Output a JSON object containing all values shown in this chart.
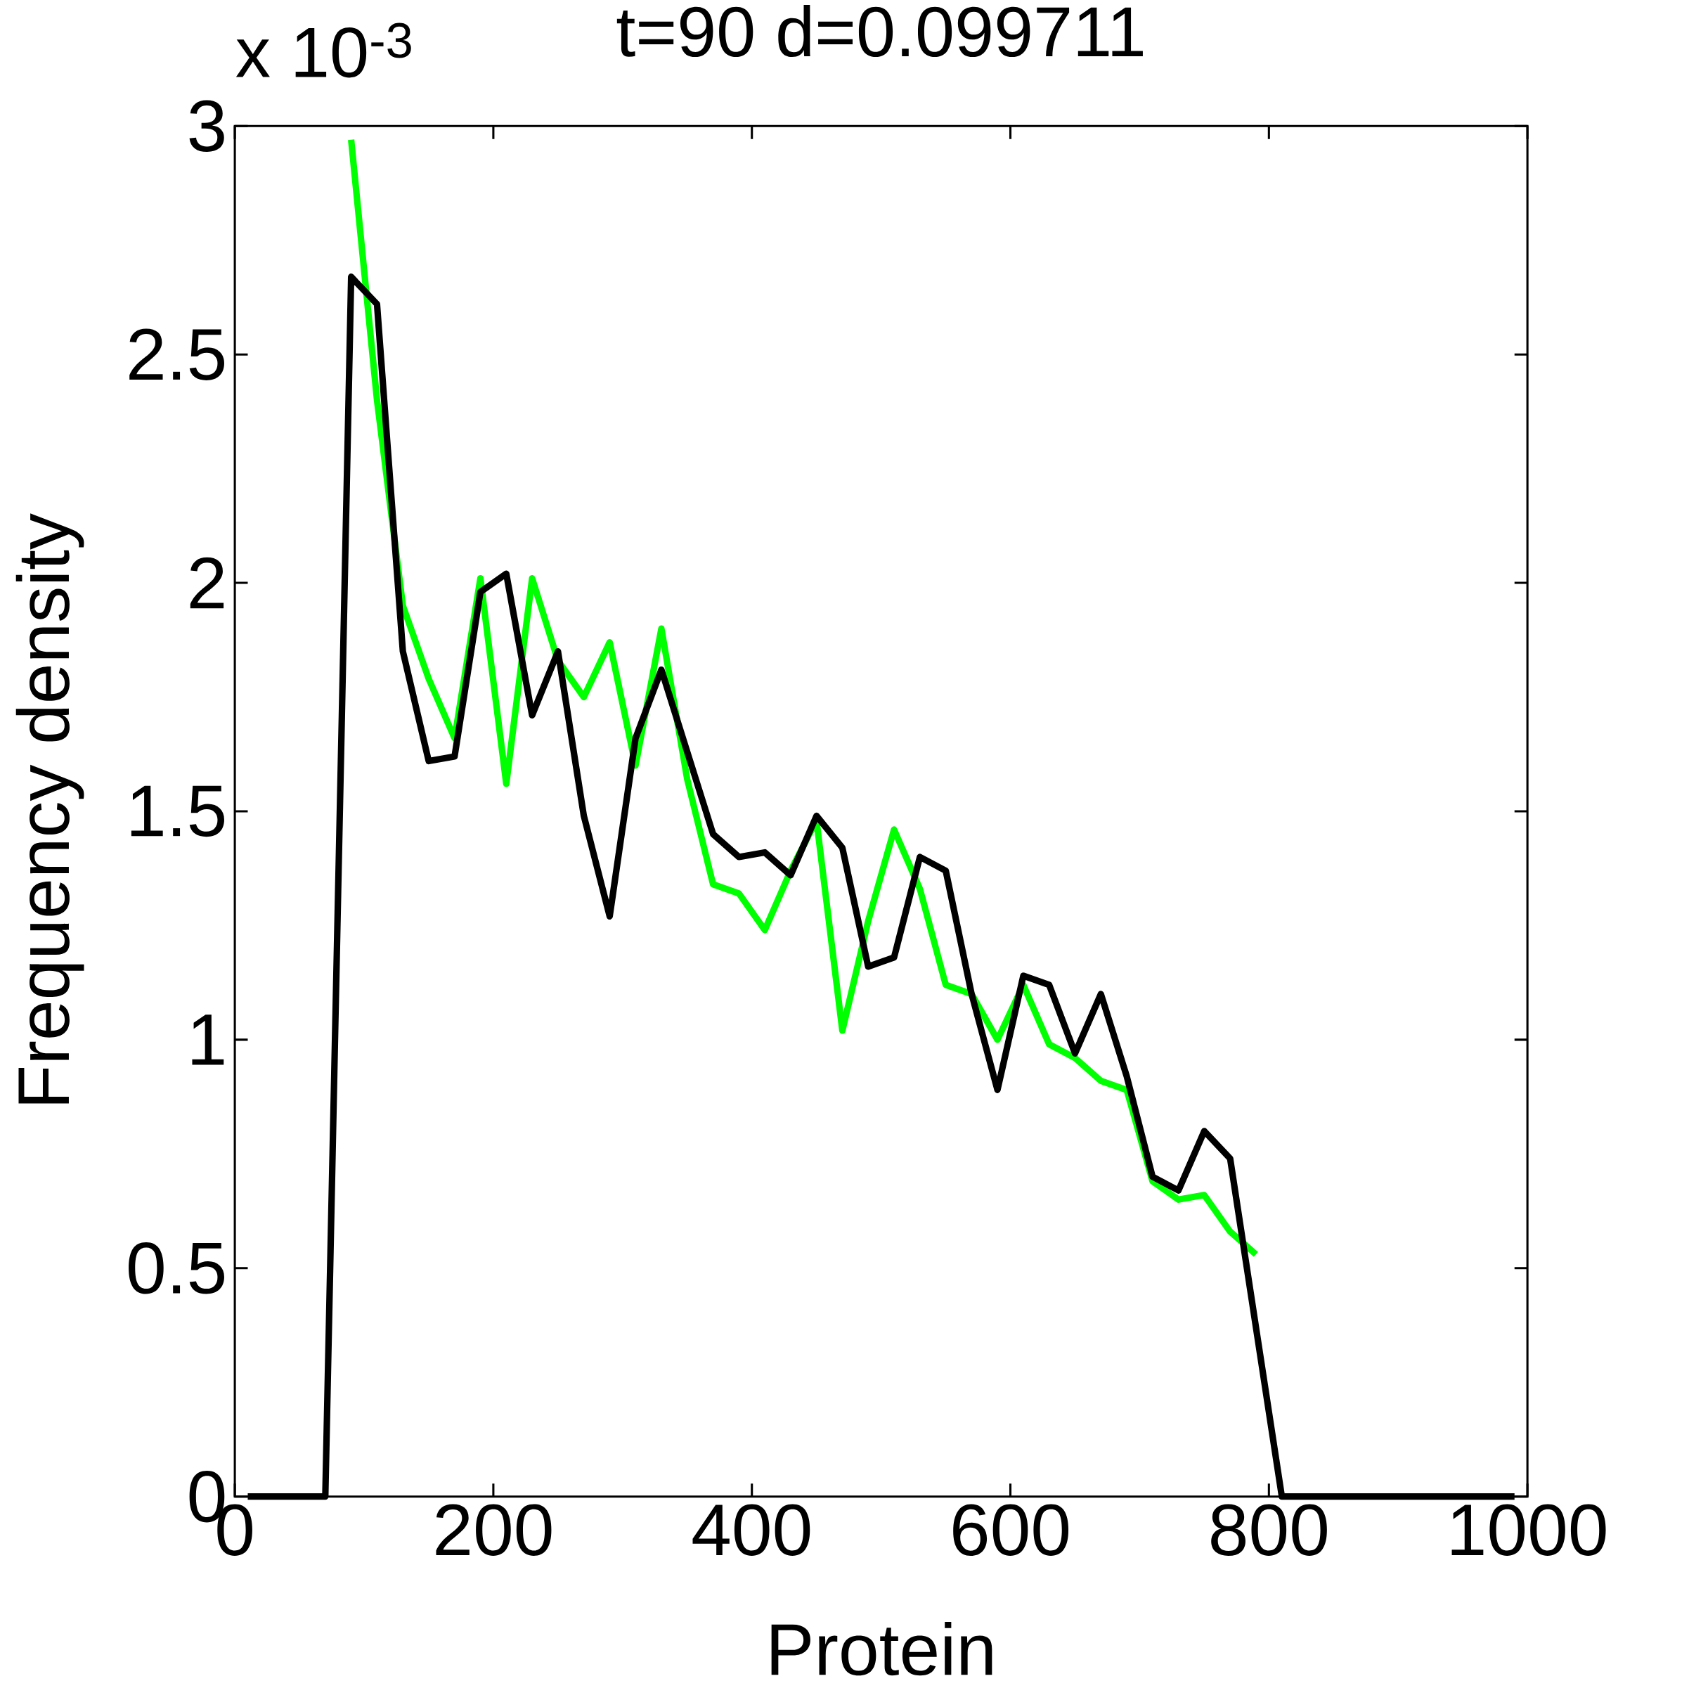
{
  "chart_data": {
    "type": "line",
    "title": "t=90 d=0.099711",
    "xlabel": "Protein",
    "ylabel": "Frequency density",
    "annotations": [
      "x 10$^{-3}$"
    ],
    "xlim": [
      0,
      1000
    ],
    "ylim": [
      0,
      3
    ],
    "xticks": [
      0,
      200,
      400,
      600,
      800,
      1000
    ],
    "yticks": [
      0,
      0.5,
      1,
      1.5,
      2,
      2.5,
      3
    ],
    "series": [
      {
        "color": "#00ff00",
        "x": [
          90,
          110,
          130,
          150,
          170,
          190,
          210,
          230,
          250,
          270,
          290,
          310,
          330,
          350,
          370,
          390,
          410,
          430,
          450,
          470,
          490,
          510,
          530,
          550,
          570,
          590,
          610,
          630,
          650,
          670,
          690,
          710,
          730,
          750,
          770,
          790
        ],
        "values": [
          2.97,
          2.4,
          1.95,
          1.79,
          1.66,
          2.01,
          1.56,
          2.01,
          1.83,
          1.75,
          1.87,
          1.6,
          1.9,
          1.57,
          1.34,
          1.32,
          1.24,
          1.37,
          1.48,
          1.02,
          1.26,
          1.46,
          1.33,
          1.12,
          1.1,
          1.0,
          1.12,
          0.99,
          0.96,
          0.91,
          0.89,
          0.69,
          0.65,
          0.66,
          0.58,
          0.53
        ]
      },
      {
        "color": "#000000",
        "x": [
          10,
          30,
          50,
          70,
          90,
          110,
          130,
          150,
          170,
          190,
          210,
          230,
          250,
          270,
          290,
          310,
          330,
          350,
          370,
          390,
          410,
          430,
          450,
          470,
          490,
          510,
          530,
          550,
          570,
          590,
          610,
          630,
          650,
          670,
          690,
          710,
          730,
          750,
          770,
          790,
          810,
          830,
          850,
          870,
          890,
          910,
          930,
          950,
          970,
          990
        ],
        "values": [
          0,
          0,
          0,
          0,
          2.67,
          2.61,
          1.85,
          1.61,
          1.62,
          1.98,
          2.02,
          1.71,
          1.85,
          1.49,
          1.27,
          1.66,
          1.81,
          1.63,
          1.45,
          1.4,
          1.41,
          1.36,
          1.49,
          1.42,
          1.16,
          1.18,
          1.4,
          1.37,
          1.1,
          0.89,
          1.14,
          1.12,
          0.97,
          1.1,
          0.92,
          0.7,
          0.67,
          0.8,
          0.74,
          0.37,
          0,
          0,
          0,
          0,
          0,
          0,
          0,
          0,
          0,
          0
        ]
      }
    ]
  }
}
